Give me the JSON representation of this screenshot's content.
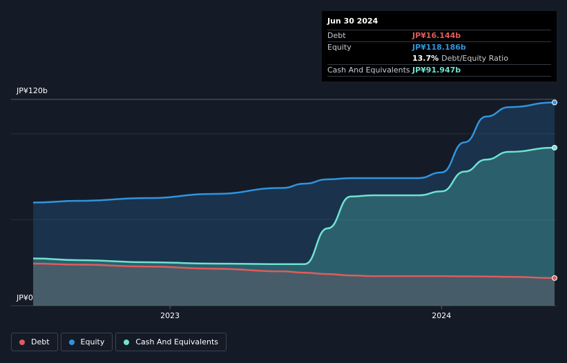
{
  "chart_data": {
    "type": "area",
    "x": [
      "2022-07",
      "2022-09",
      "2022-12",
      "2023-03",
      "2023-06",
      "2023-07",
      "2023-08",
      "2023-09",
      "2023-10",
      "2023-12",
      "2024-01",
      "2024-02",
      "2024-03",
      "2024-04",
      "2024-06"
    ],
    "series": [
      {
        "name": "Debt",
        "color": "#e05c5c",
        "values": [
          24.5,
          23.9,
          22.8,
          21.5,
          20.0,
          19.2,
          18.4,
          17.6,
          17.2,
          17.2,
          17.2,
          17.1,
          17.0,
          16.8,
          16.1
        ]
      },
      {
        "name": "Equity",
        "color": "#2f95e0",
        "values": [
          60.0,
          61.0,
          62.6,
          65.0,
          68.5,
          71.0,
          73.5,
          74.2,
          74.2,
          74.2,
          77.5,
          95.0,
          110.0,
          115.5,
          118.2
        ]
      },
      {
        "name": "Cash And Equivalents",
        "color": "#6fe3d1",
        "values": [
          27.5,
          26.5,
          25.3,
          24.5,
          24.2,
          24.2,
          45.0,
          63.5,
          64.2,
          64.2,
          66.5,
          78.0,
          85.0,
          89.5,
          91.9
        ]
      }
    ],
    "y_axis": {
      "min": 0,
      "max": 120,
      "top_label": "JP¥120b",
      "bottom_label": "JP¥0"
    },
    "x_ticks": [
      "2023",
      "2024"
    ],
    "legend_position": "bottom-left"
  },
  "tooltip": {
    "date": "Jun 30 2024",
    "debt_label": "Debt",
    "debt_value": "JP¥16.144b",
    "equity_label": "Equity",
    "equity_value": "JP¥118.186b",
    "ratio_value": "13.7%",
    "ratio_label": "Debt/Equity Ratio",
    "cash_label": "Cash And Equivalents",
    "cash_value": "JP¥91.947b"
  },
  "legend": {
    "debt": "Debt",
    "equity": "Equity",
    "cash": "Cash And Equivalents"
  }
}
